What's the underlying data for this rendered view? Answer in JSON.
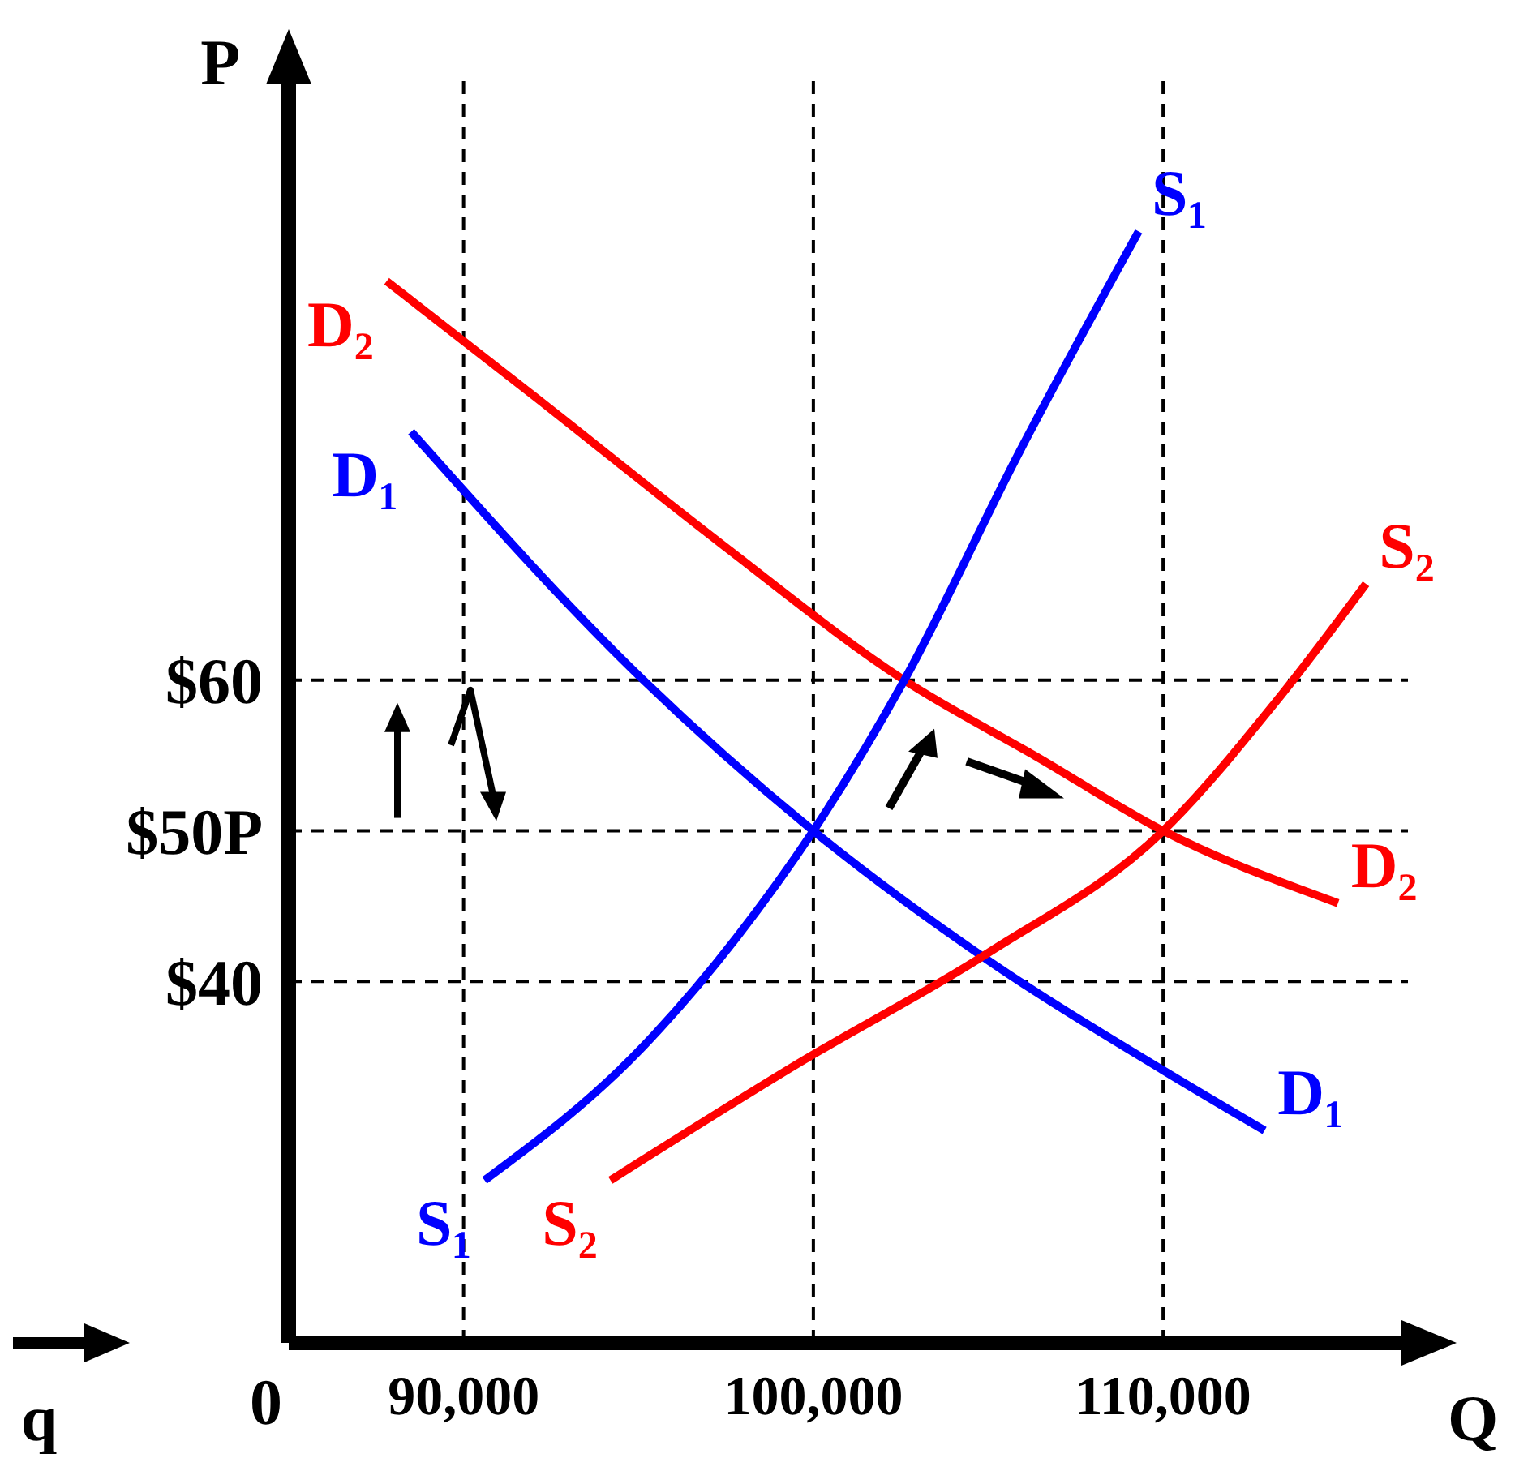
{
  "chart_data": {
    "type": "line",
    "xlabel": "Q",
    "ylabel": "P",
    "xlim": [
      85000,
      117000
    ],
    "ylim": [
      16,
      100
    ],
    "xticks": [
      {
        "value": 90000,
        "label": "90,000"
      },
      {
        "value": 100000,
        "label": "100,000"
      },
      {
        "value": 110000,
        "label": "110,000"
      }
    ],
    "yticks": [
      {
        "value": 40,
        "label": "$40"
      },
      {
        "value": 50,
        "label": "$50P"
      },
      {
        "value": 60,
        "label": "$60"
      }
    ],
    "series": [
      {
        "name": "D₂",
        "color": "#ff0000",
        "x": [
          87800,
          92000,
          97400,
          102600,
          106400,
          110000,
          115000
        ],
        "values": [
          86.5,
          78.9,
          69,
          60,
          54.9,
          50,
          45.2
        ]
      },
      {
        "name": "D₁",
        "color": "#0000ff",
        "x": [
          88500,
          95100,
          100000,
          105000,
          110000,
          112900
        ],
        "values": [
          76.5,
          60.1,
          50,
          41.4,
          34.1,
          30.1
        ]
      },
      {
        "name": "S₁",
        "color": "#0000ff",
        "x": [
          90600,
          95100,
          97800,
          100000,
          102600,
          105900,
          109300
        ],
        "values": [
          26.8,
          35.6,
          42.9,
          50,
          60,
          75.2,
          89.8
        ]
      },
      {
        "name": "S₂",
        "color": "#ff0000",
        "x": [
          94200,
          99600,
          105000,
          110000,
          113200,
          115800
        ],
        "values": [
          26.8,
          34.6,
          41.9,
          50,
          58.5,
          66.4
        ]
      }
    ],
    "ref_lines": [
      {
        "axis": "y",
        "value": 60,
        "line_style": "dashed"
      },
      {
        "axis": "y",
        "value": 50,
        "line_style": "dashed"
      },
      {
        "axis": "y",
        "value": 40,
        "line_style": "dashed"
      },
      {
        "axis": "x",
        "value": 90000,
        "line_style": "dashed"
      },
      {
        "axis": "x",
        "value": 100000,
        "line_style": "dashed"
      },
      {
        "axis": "x",
        "value": 110000,
        "line_style": "dashed"
      }
    ],
    "annotations": [
      "0",
      "q"
    ],
    "legend": false,
    "grid": false,
    "marker": "none",
    "line_style": "solid"
  }
}
